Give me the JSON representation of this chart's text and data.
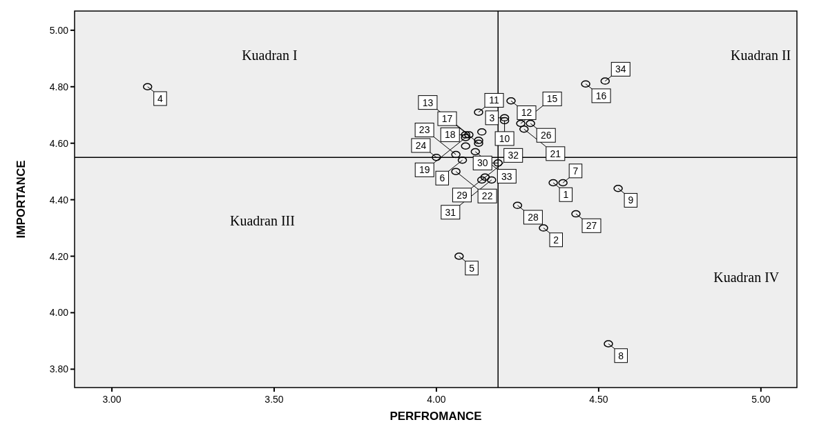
{
  "chart_data": {
    "type": "scatter",
    "xlabel": "PERFROMANCE",
    "ylabel": "IMPORTANCE",
    "xlim": [
      2.885,
      5.111
    ],
    "ylim": [
      3.735,
      5.068
    ],
    "xticks": [
      {
        "value": 3,
        "label": "3.00"
      },
      {
        "value": 3.5,
        "label": "3.50"
      },
      {
        "value": 4,
        "label": "4.00"
      },
      {
        "value": 4.5,
        "label": "4.50"
      },
      {
        "value": 5,
        "label": "5.00"
      }
    ],
    "yticks": [
      {
        "value": 3.8,
        "label": "3.80"
      },
      {
        "value": 4,
        "label": "4.00"
      },
      {
        "value": 4.2,
        "label": "4.20"
      },
      {
        "value": 4.4,
        "label": "4.40"
      },
      {
        "value": 4.6,
        "label": "4.60"
      },
      {
        "value": 4.8,
        "label": "4.80"
      },
      {
        "value": 5,
        "label": "5.00"
      }
    ],
    "grid": false,
    "marker": "circle",
    "series": [
      {
        "color": "#000000",
        "x": [
          3.11,
          4.23,
          4.13,
          4.21,
          4.21,
          4.29,
          4.26,
          4.27,
          4.13,
          4.46,
          4.52,
          4.36,
          4.39,
          4.25,
          4.43,
          4.56,
          4.33,
          4.07,
          4.53,
          4.09,
          4.1,
          4.09,
          4.14,
          4.13,
          4.09,
          4.12,
          4.06,
          4.0,
          4.08,
          4.06,
          4.19,
          4.15,
          4.14,
          4.17
        ],
        "values": [
          4.8,
          4.75,
          4.71,
          4.69,
          4.68,
          4.67,
          4.67,
          4.65,
          4.6,
          4.81,
          4.82,
          4.46,
          4.46,
          4.38,
          4.35,
          4.44,
          4.3,
          4.2,
          3.89,
          4.63,
          4.63,
          4.62,
          4.64,
          4.61,
          4.59,
          4.57,
          4.56,
          4.55,
          4.54,
          4.5,
          4.53,
          4.48,
          4.47,
          4.47
        ]
      }
    ],
    "ref_lines": [
      {
        "axis": "x",
        "value": 4.19
      },
      {
        "axis": "y",
        "value": 4.55
      }
    ],
    "annotations": [
      "Kuadran I",
      "Kuadran II",
      "Kuadran III",
      "Kuadran IV",
      {
        "text": "4",
        "x": 3.11,
        "y": 4.8
      },
      {
        "text": "12",
        "x": 4.23,
        "y": 4.75
      },
      {
        "text": "11",
        "x": 4.13,
        "y": 4.71
      },
      {
        "text": "3",
        "x": 4.21,
        "y": 4.69
      },
      {
        "text": "10",
        "x": 4.21,
        "y": 4.68
      },
      {
        "text": "26",
        "x": 4.29,
        "y": 4.67
      },
      {
        "text": "15",
        "x": 4.26,
        "y": 4.67
      },
      {
        "text": "21",
        "x": 4.27,
        "y": 4.65
      },
      {
        "text": "17",
        "x": 4.13,
        "y": 4.6
      },
      {
        "text": "16",
        "x": 4.46,
        "y": 4.81
      },
      {
        "text": "34",
        "x": 4.52,
        "y": 4.82
      },
      {
        "text": "1",
        "x": 4.36,
        "y": 4.46
      },
      {
        "text": "7",
        "x": 4.39,
        "y": 4.46
      },
      {
        "text": "28",
        "x": 4.25,
        "y": 4.38
      },
      {
        "text": "27",
        "x": 4.43,
        "y": 4.35
      },
      {
        "text": "9",
        "x": 4.56,
        "y": 4.44
      },
      {
        "text": "2",
        "x": 4.33,
        "y": 4.3
      },
      {
        "text": "5",
        "x": 4.07,
        "y": 4.2
      },
      {
        "text": "8",
        "x": 4.53,
        "y": 3.89
      },
      {
        "text": "18",
        "x": 4.09,
        "y": 4.63
      },
      {
        "text": "13",
        "x": 4.1,
        "y": 4.63
      },
      {
        "text": "19",
        "x": 4.09,
        "y": 4.62
      },
      {
        "text": "33",
        "x": 4.12,
        "y": 4.57
      },
      {
        "text": "23",
        "x": 4.06,
        "y": 4.56
      },
      {
        "text": "24",
        "x": 4.0,
        "y": 4.55
      },
      {
        "text": "6",
        "x": 4.08,
        "y": 4.54
      },
      {
        "text": "22",
        "x": 4.06,
        "y": 4.5
      },
      {
        "text": "30",
        "x": 4.19,
        "y": 4.53
      },
      {
        "text": "29",
        "x": 4.15,
        "y": 4.48
      },
      {
        "text": "32",
        "x": 4.14,
        "y": 4.47
      },
      {
        "text": "31",
        "x": 4.17,
        "y": 4.47
      }
    ]
  }
}
